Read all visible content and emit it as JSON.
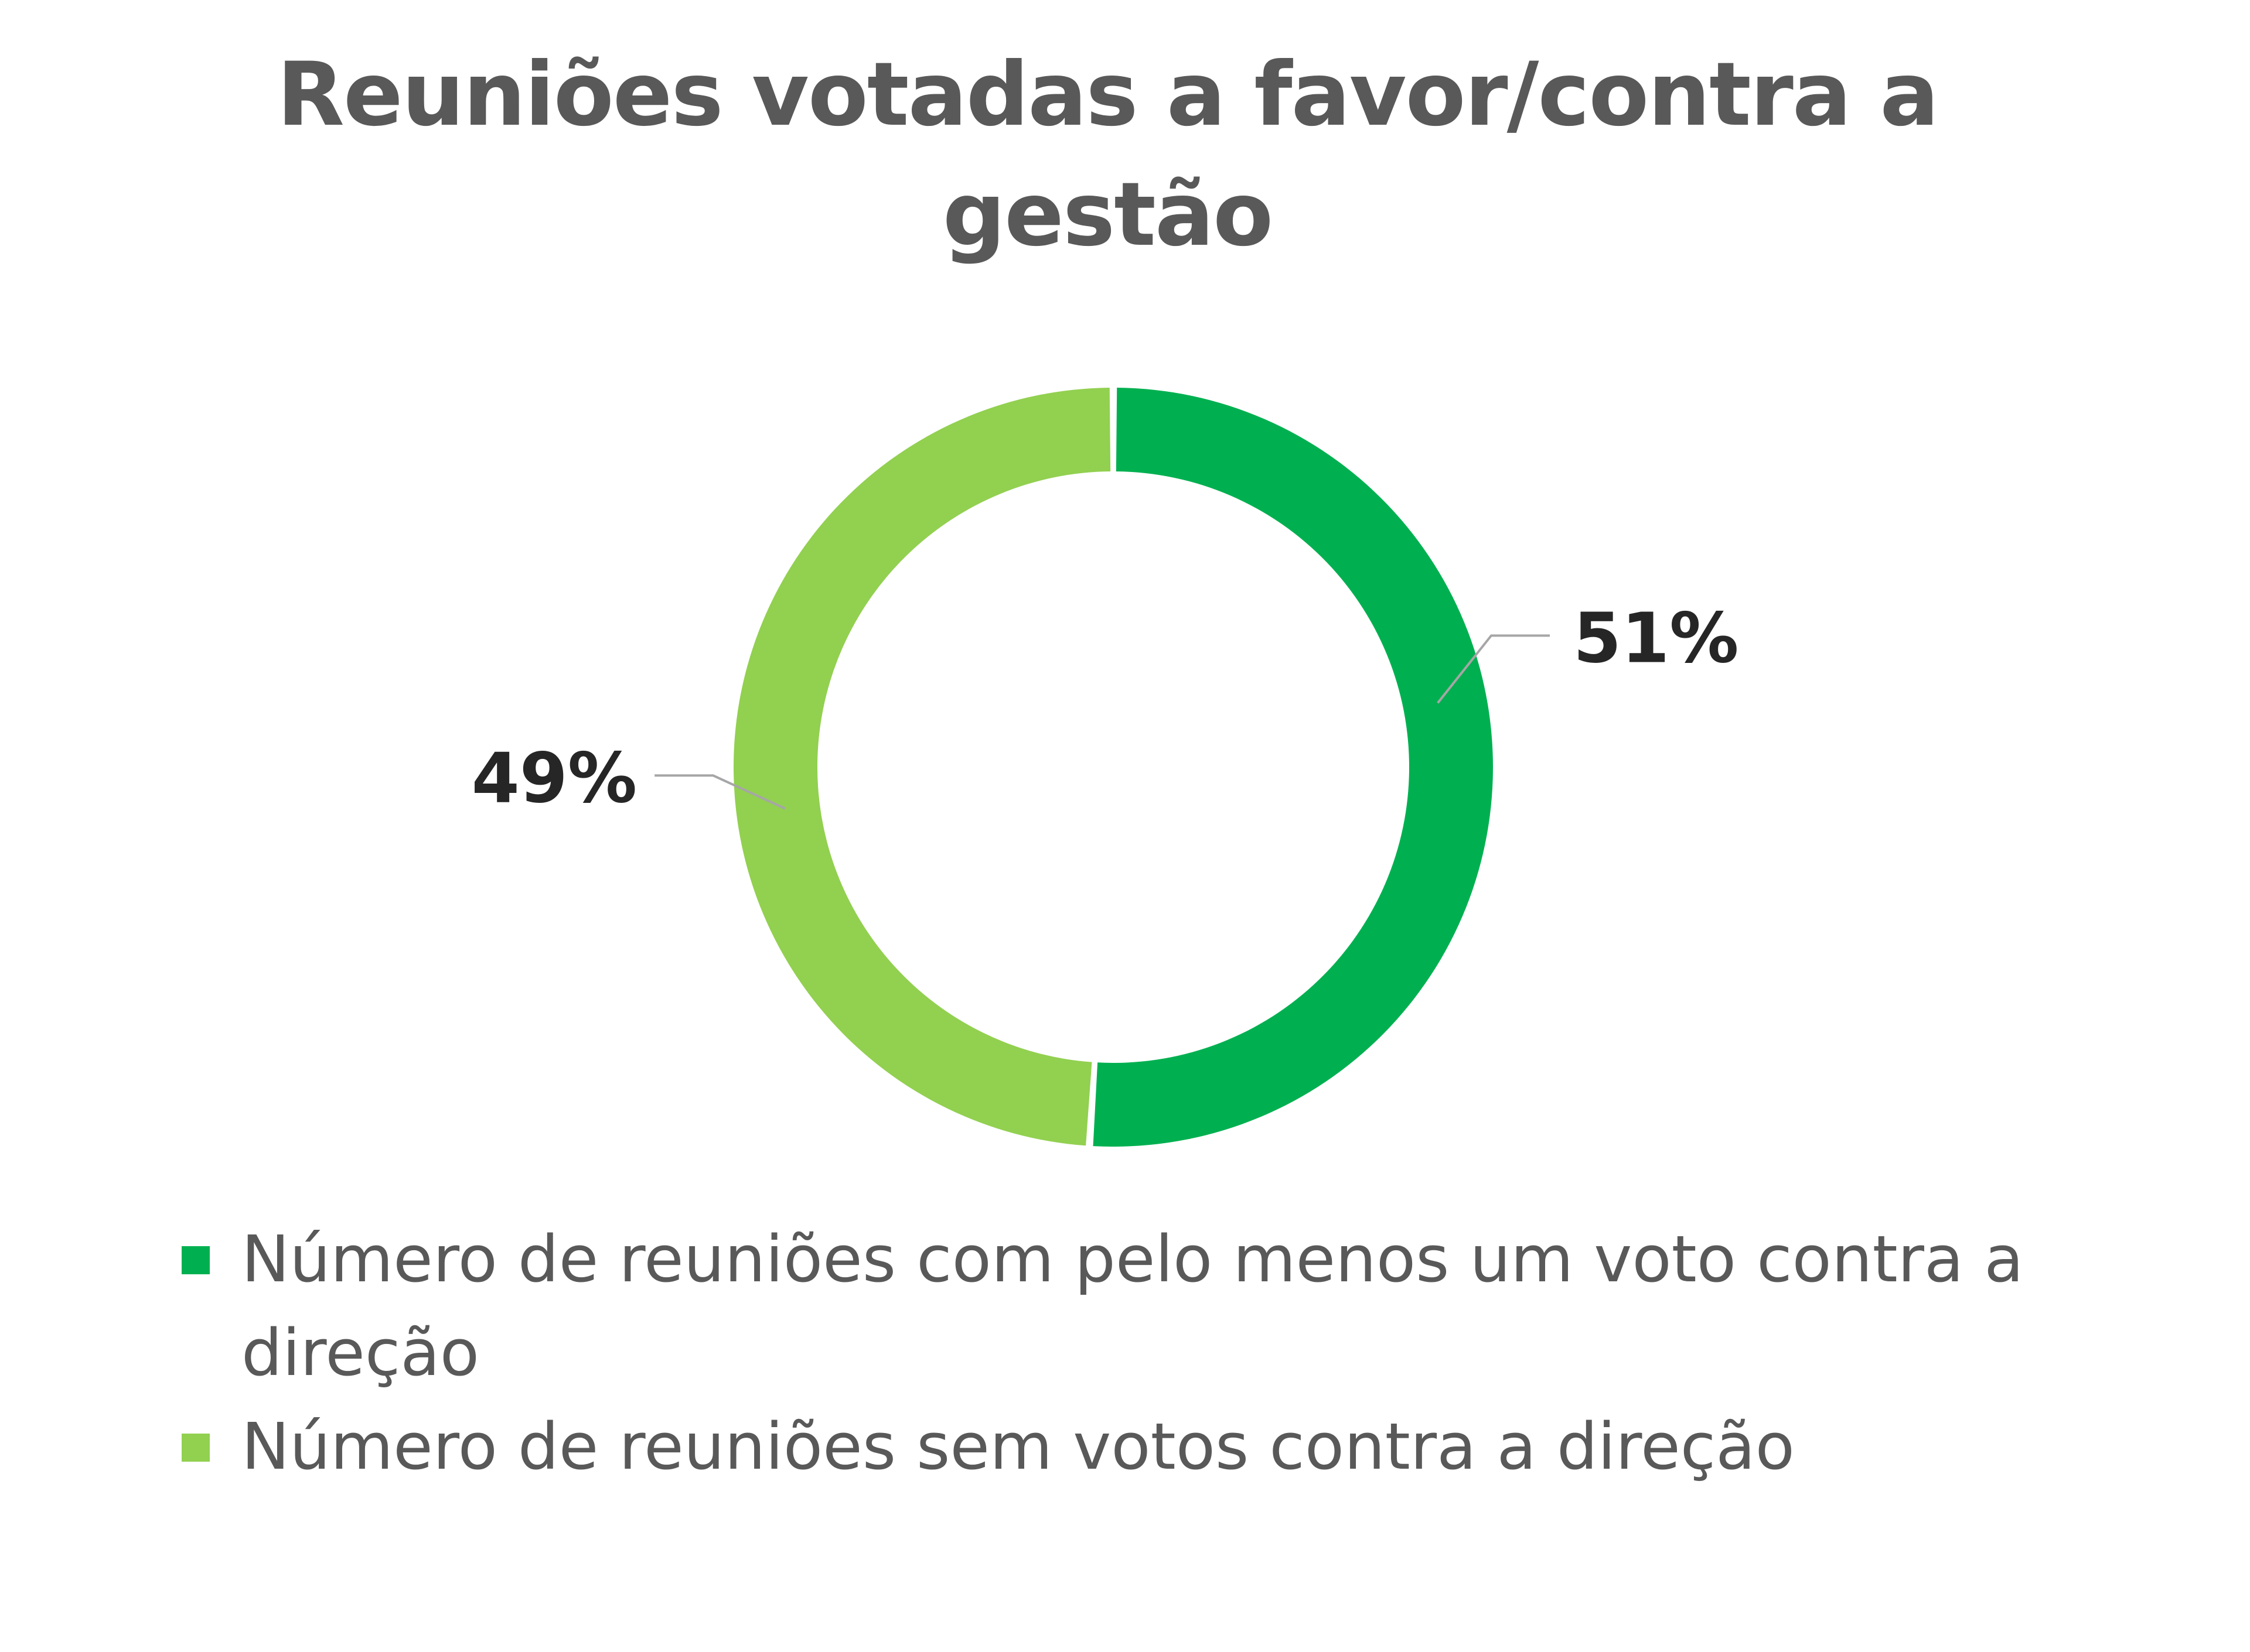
{
  "title": "Reuniões votadas a favor/contra a gestão",
  "chart_data": {
    "type": "pie",
    "style": "donut",
    "title": "Reuniões votadas a favor/contra a gestão",
    "series": [
      {
        "name": "Número de reuniões com pelo menos um voto contra a direção",
        "value": 51,
        "label": "51%",
        "color": "#00b050"
      },
      {
        "name": "Número de reuniões sem votos contra a direção",
        "value": 49,
        "label": "49%",
        "color": "#92d050"
      }
    ],
    "legend_position": "bottom",
    "leader_line_color": "#a6a6a6"
  }
}
